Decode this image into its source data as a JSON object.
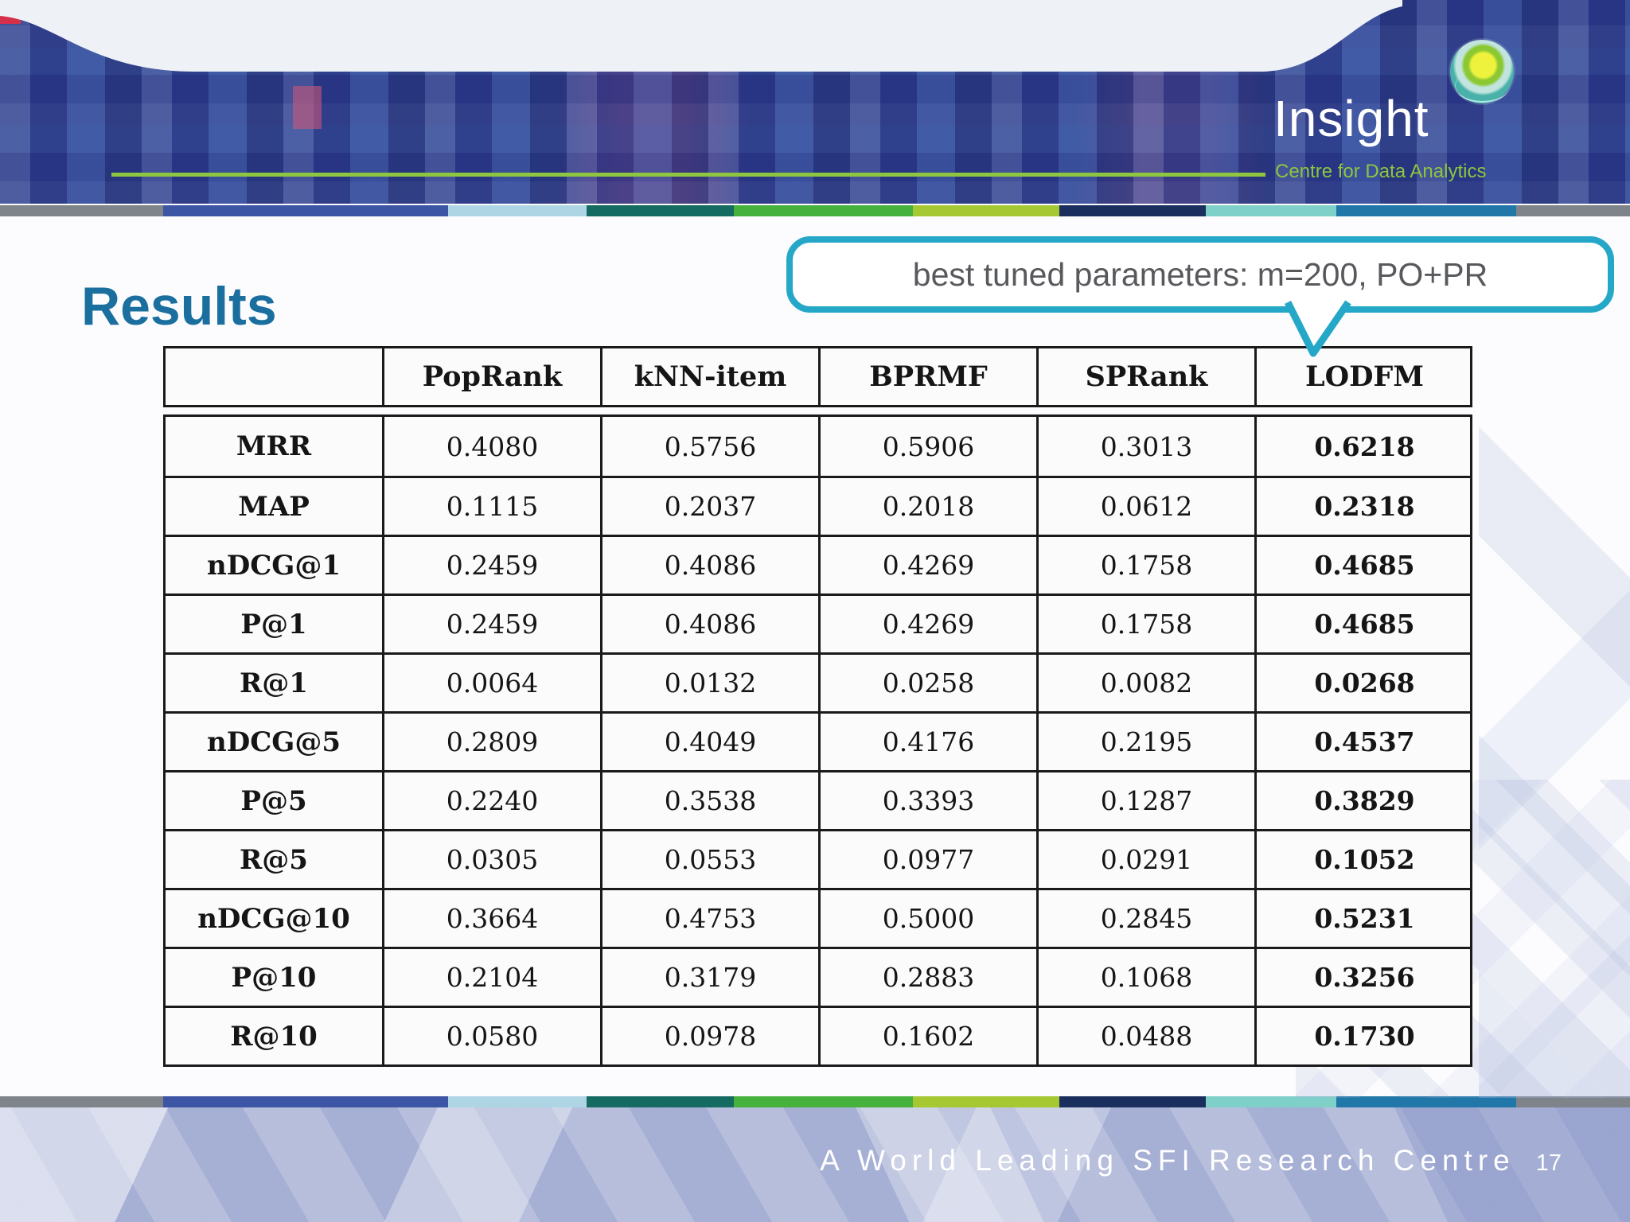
{
  "slide": {
    "title": "Results",
    "footer_motto": "A World Leading SFI Research Centre",
    "page_number": "17"
  },
  "logo": {
    "brand": "Insight",
    "subtitle": "Centre for Data Analytics"
  },
  "callout": {
    "text": "best tuned parameters: m=200, PO+PR"
  },
  "table": {
    "columns": [
      "",
      "PopRank",
      "kNN-item",
      "BPRMF",
      "SPRank",
      "LODFM"
    ],
    "emphasized_column": "LODFM",
    "rows": [
      {
        "metric": "MRR",
        "values": [
          "0.4080",
          "0.5756",
          "0.5906",
          "0.3013",
          "0.6218"
        ]
      },
      {
        "metric": "MAP",
        "values": [
          "0.1115",
          "0.2037",
          "0.2018",
          "0.0612",
          "0.2318"
        ]
      },
      {
        "metric": "nDCG@1",
        "values": [
          "0.2459",
          "0.4086",
          "0.4269",
          "0.1758",
          "0.4685"
        ]
      },
      {
        "metric": "P@1",
        "values": [
          "0.2459",
          "0.4086",
          "0.4269",
          "0.1758",
          "0.4685"
        ]
      },
      {
        "metric": "R@1",
        "values": [
          "0.0064",
          "0.0132",
          "0.0258",
          "0.0082",
          "0.0268"
        ]
      },
      {
        "metric": "nDCG@5",
        "values": [
          "0.2809",
          "0.4049",
          "0.4176",
          "0.2195",
          "0.4537"
        ]
      },
      {
        "metric": "P@5",
        "values": [
          "0.2240",
          "0.3538",
          "0.3393",
          "0.1287",
          "0.3829"
        ]
      },
      {
        "metric": "R@5",
        "values": [
          "0.0305",
          "0.0553",
          "0.0977",
          "0.0291",
          "0.1052"
        ]
      },
      {
        "metric": "nDCG@10",
        "values": [
          "0.3664",
          "0.4753",
          "0.5000",
          "0.2845",
          "0.5231"
        ]
      },
      {
        "metric": "P@10",
        "values": [
          "0.2104",
          "0.3179",
          "0.2883",
          "0.1068",
          "0.3256"
        ]
      },
      {
        "metric": "R@10",
        "values": [
          "0.0580",
          "0.0978",
          "0.1602",
          "0.0488",
          "0.1730"
        ]
      }
    ]
  },
  "stripes": {
    "segments": [
      {
        "color": "#7e8489",
        "w": 10
      },
      {
        "color": "#3c55a4",
        "w": 17.5
      },
      {
        "color": "#aed5e4",
        "w": 8.5
      },
      {
        "color": "#156a62",
        "w": 9
      },
      {
        "color": "#46b13d",
        "w": 11
      },
      {
        "color": "#a6c832",
        "w": 9
      },
      {
        "color": "#1b2f5e",
        "w": 9
      },
      {
        "color": "#7fd0c8",
        "w": 8
      },
      {
        "color": "#2077a8",
        "w": 11
      },
      {
        "color": "#7e8489",
        "w": 7
      }
    ]
  },
  "colors": {
    "title_blue": "#1b6f9e",
    "callout_border": "#25a7c8",
    "callout_text": "#57595c",
    "green_accent": "#8ec63f",
    "header_blue": "#2e3f8f",
    "footer_lilac": "#abb4d6"
  }
}
